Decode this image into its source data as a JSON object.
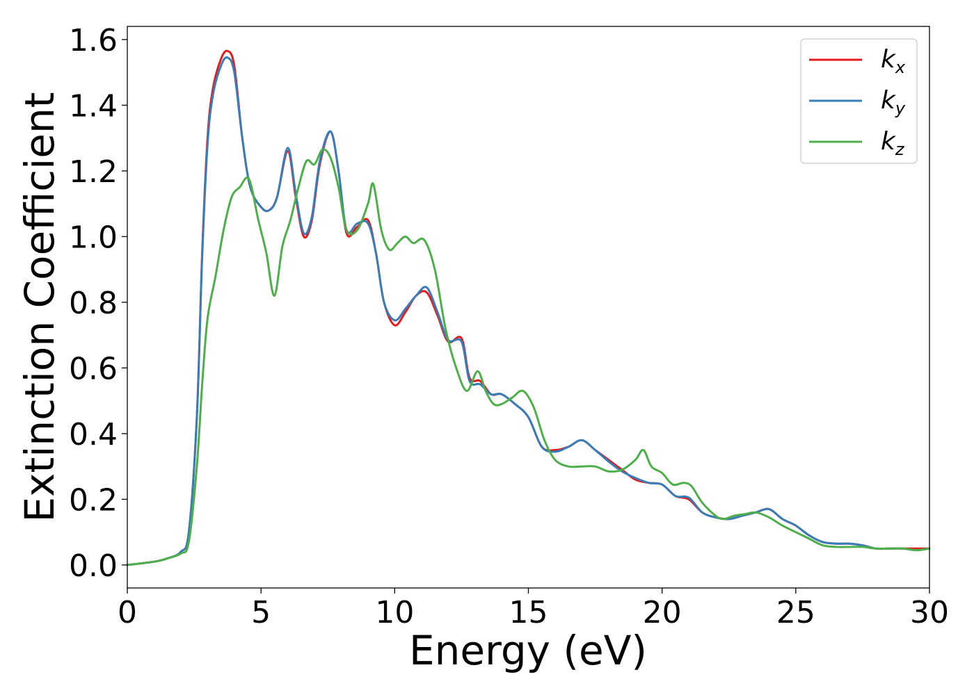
{
  "chart_data": {
    "type": "line",
    "xlabel": "Energy (eV)",
    "ylabel": "Extinction Coefficient",
    "xlim": [
      0,
      30
    ],
    "ylim": [
      -0.07,
      1.64
    ],
    "xticks": [
      0,
      5,
      10,
      15,
      20,
      25,
      30
    ],
    "xtick_labels": [
      "0",
      "5",
      "10",
      "15",
      "20",
      "25",
      "30"
    ],
    "yticks": [
      0.0,
      0.2,
      0.4,
      0.6,
      0.8,
      1.0,
      1.2,
      1.4,
      1.6
    ],
    "ytick_labels": [
      "0.0",
      "0.2",
      "0.4",
      "0.6",
      "0.8",
      "1.0",
      "1.2",
      "1.4",
      "1.6"
    ],
    "grid": false,
    "legend_position": "top-right",
    "series": [
      {
        "name": "k",
        "subscript": "x",
        "color": "#e41a1c",
        "x": [
          0,
          1,
          1.5,
          2,
          2.3,
          2.6,
          2.8,
          3.0,
          3.2,
          3.5,
          3.75,
          4.0,
          4.3,
          4.6,
          5.0,
          5.3,
          5.6,
          6.0,
          6.3,
          6.6,
          6.9,
          7.2,
          7.6,
          7.9,
          8.2,
          8.6,
          9.0,
          9.3,
          9.6,
          10.0,
          10.4,
          10.8,
          11.2,
          11.6,
          12.0,
          12.5,
          12.8,
          13.2,
          13.6,
          14.0,
          14.5,
          15.0,
          15.5,
          16.0,
          16.5,
          17.0,
          17.5,
          18.0,
          18.5,
          19.0,
          19.5,
          20.0,
          20.5,
          21.0,
          21.5,
          22.0,
          22.5,
          23.0,
          23.5,
          24.0,
          24.5,
          25.0,
          25.5,
          26.0,
          26.5,
          27.0,
          27.5,
          28.0,
          28.5,
          29.0,
          29.5,
          30.0
        ],
        "y": [
          0,
          0.01,
          0.02,
          0.04,
          0.1,
          0.45,
          0.95,
          1.3,
          1.45,
          1.54,
          1.565,
          1.52,
          1.3,
          1.15,
          1.09,
          1.08,
          1.12,
          1.26,
          1.12,
          1.0,
          1.05,
          1.22,
          1.32,
          1.2,
          1.01,
          1.03,
          1.05,
          0.95,
          0.8,
          0.73,
          0.77,
          0.82,
          0.83,
          0.76,
          0.68,
          0.69,
          0.57,
          0.56,
          0.52,
          0.52,
          0.49,
          0.45,
          0.36,
          0.35,
          0.36,
          0.38,
          0.35,
          0.32,
          0.29,
          0.26,
          0.25,
          0.245,
          0.21,
          0.2,
          0.16,
          0.145,
          0.14,
          0.15,
          0.16,
          0.17,
          0.14,
          0.12,
          0.09,
          0.07,
          0.065,
          0.065,
          0.06,
          0.05,
          0.05,
          0.05,
          0.05,
          0.05
        ]
      },
      {
        "name": "k",
        "subscript": "y",
        "color": "#377eb8",
        "x": [
          0,
          1,
          1.5,
          2,
          2.3,
          2.6,
          2.8,
          3.0,
          3.2,
          3.5,
          3.75,
          4.0,
          4.3,
          4.6,
          5.0,
          5.3,
          5.6,
          6.0,
          6.3,
          6.6,
          6.9,
          7.2,
          7.6,
          7.9,
          8.2,
          8.6,
          9.0,
          9.3,
          9.6,
          10.0,
          10.4,
          10.8,
          11.2,
          11.6,
          12.0,
          12.5,
          12.8,
          13.2,
          13.6,
          14.0,
          14.5,
          15.0,
          15.5,
          16.0,
          16.5,
          17.0,
          17.5,
          18.0,
          18.5,
          19.0,
          19.5,
          20.0,
          20.5,
          21.0,
          21.5,
          22.0,
          22.5,
          23.0,
          23.5,
          24.0,
          24.5,
          25.0,
          25.5,
          26.0,
          26.5,
          27.0,
          27.5,
          28.0,
          28.5,
          29.0,
          29.5,
          30.0
        ],
        "y": [
          0,
          0.01,
          0.02,
          0.04,
          0.1,
          0.45,
          0.94,
          1.28,
          1.43,
          1.52,
          1.545,
          1.5,
          1.3,
          1.15,
          1.09,
          1.08,
          1.12,
          1.27,
          1.13,
          1.01,
          1.06,
          1.23,
          1.32,
          1.2,
          1.02,
          1.04,
          1.04,
          0.95,
          0.8,
          0.745,
          0.78,
          0.82,
          0.845,
          0.77,
          0.685,
          0.68,
          0.56,
          0.55,
          0.52,
          0.52,
          0.49,
          0.45,
          0.36,
          0.345,
          0.36,
          0.38,
          0.35,
          0.315,
          0.285,
          0.265,
          0.25,
          0.245,
          0.21,
          0.205,
          0.16,
          0.145,
          0.14,
          0.15,
          0.16,
          0.17,
          0.14,
          0.12,
          0.09,
          0.07,
          0.065,
          0.065,
          0.06,
          0.05,
          0.05,
          0.05,
          0.045,
          0.05
        ]
      },
      {
        "name": "k",
        "subscript": "z",
        "color": "#4daf4a",
        "x": [
          0,
          1,
          1.5,
          2,
          2.3,
          2.6,
          2.8,
          3.0,
          3.3,
          3.6,
          3.9,
          4.2,
          4.55,
          4.9,
          5.2,
          5.5,
          5.8,
          6.1,
          6.4,
          6.7,
          7.0,
          7.3,
          7.6,
          7.9,
          8.2,
          8.6,
          9.0,
          9.2,
          9.5,
          9.8,
          10.1,
          10.4,
          10.7,
          11.1,
          11.5,
          11.9,
          12.3,
          12.7,
          13.1,
          13.4,
          13.7,
          14.0,
          14.4,
          14.8,
          15.2,
          15.6,
          16.0,
          16.5,
          17.0,
          17.5,
          18.0,
          18.5,
          19.0,
          19.3,
          19.6,
          20.0,
          20.4,
          20.8,
          21.1,
          21.5,
          22.0,
          22.3,
          22.7,
          23.1,
          23.5,
          24.0,
          24.5,
          25.0,
          25.5,
          26.0,
          26.5,
          27.0,
          27.5,
          28.0,
          28.5,
          29.0,
          29.5,
          30.0
        ],
        "y": [
          0,
          0.01,
          0.02,
          0.035,
          0.07,
          0.3,
          0.55,
          0.75,
          0.88,
          1.02,
          1.12,
          1.15,
          1.175,
          1.05,
          0.95,
          0.82,
          0.97,
          1.05,
          1.15,
          1.23,
          1.22,
          1.265,
          1.24,
          1.15,
          1.02,
          1.02,
          1.1,
          1.16,
          1.02,
          0.96,
          0.98,
          1.0,
          0.98,
          0.99,
          0.9,
          0.72,
          0.6,
          0.53,
          0.59,
          0.53,
          0.49,
          0.49,
          0.51,
          0.53,
          0.48,
          0.38,
          0.32,
          0.3,
          0.3,
          0.3,
          0.285,
          0.29,
          0.32,
          0.35,
          0.3,
          0.28,
          0.245,
          0.25,
          0.24,
          0.19,
          0.15,
          0.14,
          0.15,
          0.155,
          0.16,
          0.145,
          0.12,
          0.1,
          0.08,
          0.06,
          0.055,
          0.055,
          0.055,
          0.05,
          0.05,
          0.05,
          0.045,
          0.05
        ]
      }
    ]
  }
}
